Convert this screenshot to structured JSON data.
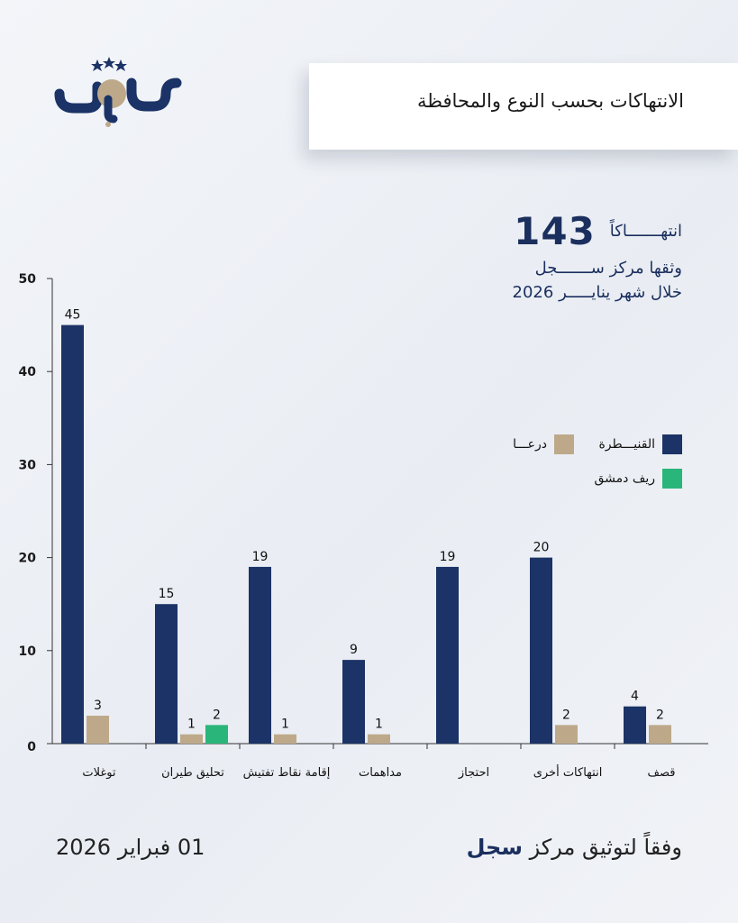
{
  "brand": {
    "name": "سجل",
    "star_count": 3
  },
  "title": "الانتهاكات بحسب النوع والمحافظة",
  "summary": {
    "total": "143",
    "total_word": "انتهـــــــاكاً",
    "line2": "وثقها مركز ســـــــجل",
    "line3": "خلال شهر ينايـــــر 2026"
  },
  "legend": [
    {
      "label": "القنيـــطرة",
      "color": "#1b3366"
    },
    {
      "label": "درعـــا",
      "color": "#bda98a"
    },
    {
      "label": "ريف دمشق",
      "color": "#2ab57a"
    }
  ],
  "footer": {
    "date": "01 فبراير 2026",
    "source_prefix": "وفقاً لتوثيق مركز",
    "source_name": "سجل"
  },
  "chart_data": {
    "type": "bar",
    "categories": [
      "توغلات",
      "تحليق طيران",
      "إقامة نقاط تفتيش",
      "مداهمات",
      "احتجاز",
      "انتهاكات أخرى",
      "قصف"
    ],
    "series": [
      {
        "name": "القنيـــطرة",
        "color": "#1b3366",
        "values": [
          45,
          15,
          19,
          9,
          19,
          20,
          4
        ]
      },
      {
        "name": "درعـــا",
        "color": "#bda98a",
        "values": [
          3,
          1,
          1,
          1,
          null,
          2,
          2
        ]
      },
      {
        "name": "ريف دمشق",
        "color": "#2ab57a",
        "values": [
          null,
          2,
          null,
          null,
          null,
          null,
          null
        ]
      }
    ],
    "ylim": [
      0,
      50
    ],
    "yticks": [
      0,
      10,
      20,
      30,
      40,
      50
    ],
    "data_labels": true,
    "legend_position": "top-right"
  }
}
